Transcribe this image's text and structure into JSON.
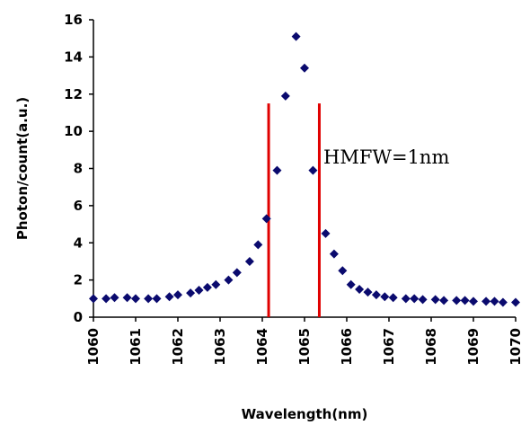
{
  "chart_data": {
    "type": "scatter",
    "xlabel": "Wavelength(nm)",
    "ylabel": "Photon/count(a.u.)",
    "xlim": [
      1060,
      1070
    ],
    "ylim": [
      0,
      16
    ],
    "x_ticks": [
      "1060",
      "1061",
      "1062",
      "1063",
      "1064",
      "1065",
      "1066",
      "1067",
      "1068",
      "1069",
      "1070"
    ],
    "y_ticks": [
      "0",
      "2",
      "4",
      "6",
      "8",
      "10",
      "12",
      "14",
      "16"
    ],
    "grid": false,
    "legend": "none",
    "marker_color": "#0a0a6e",
    "line_color": "#e00000",
    "annotation": "HMFW=1nm",
    "vertical_lines": [
      {
        "x": 1064.15,
        "y_top": 11.5
      },
      {
        "x": 1065.35,
        "y_top": 11.5
      }
    ],
    "points": [
      [
        1060.0,
        1.0
      ],
      [
        1060.3,
        1.0
      ],
      [
        1060.5,
        1.05
      ],
      [
        1060.8,
        1.05
      ],
      [
        1061.0,
        1.0
      ],
      [
        1061.3,
        1.0
      ],
      [
        1061.5,
        1.0
      ],
      [
        1061.8,
        1.1
      ],
      [
        1062.0,
        1.2
      ],
      [
        1062.3,
        1.3
      ],
      [
        1062.5,
        1.45
      ],
      [
        1062.7,
        1.6
      ],
      [
        1062.9,
        1.75
      ],
      [
        1063.2,
        2.0
      ],
      [
        1063.4,
        2.4
      ],
      [
        1063.7,
        3.0
      ],
      [
        1063.9,
        3.9
      ],
      [
        1064.1,
        5.3
      ],
      [
        1064.35,
        7.9
      ],
      [
        1064.55,
        11.9
      ],
      [
        1064.8,
        15.1
      ],
      [
        1065.0,
        13.4
      ],
      [
        1065.2,
        7.9
      ],
      [
        1065.5,
        4.5
      ],
      [
        1065.7,
        3.4
      ],
      [
        1065.9,
        2.5
      ],
      [
        1066.1,
        1.75
      ],
      [
        1066.3,
        1.5
      ],
      [
        1066.5,
        1.35
      ],
      [
        1066.7,
        1.2
      ],
      [
        1066.9,
        1.1
      ],
      [
        1067.1,
        1.05
      ],
      [
        1067.4,
        1.0
      ],
      [
        1067.6,
        1.0
      ],
      [
        1067.8,
        0.95
      ],
      [
        1068.1,
        0.95
      ],
      [
        1068.3,
        0.9
      ],
      [
        1068.6,
        0.9
      ],
      [
        1068.8,
        0.9
      ],
      [
        1069.0,
        0.85
      ],
      [
        1069.3,
        0.85
      ],
      [
        1069.5,
        0.85
      ],
      [
        1069.7,
        0.8
      ],
      [
        1070.0,
        0.8
      ]
    ]
  }
}
